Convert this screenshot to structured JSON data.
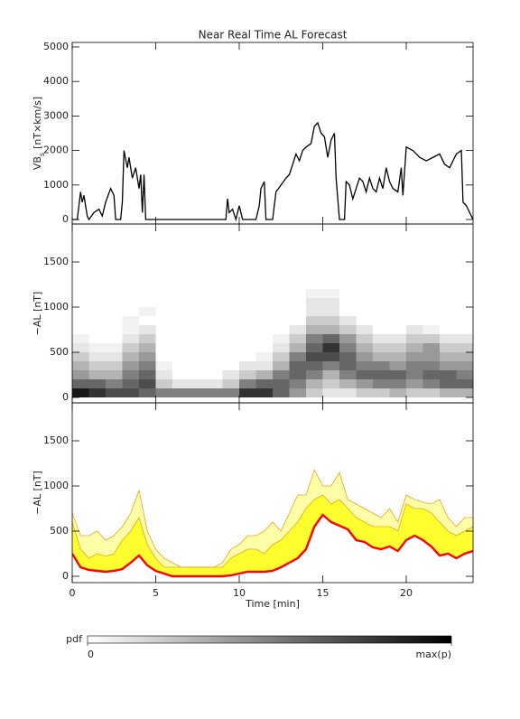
{
  "chart_data": [
    {
      "type": "line",
      "title": "Near Real Time AL Forecast",
      "ylabel": {
        "main": "VB",
        "sub": "s",
        "unit": "[nT×km/s]"
      },
      "color": "#000000",
      "x": [
        0,
        0.3,
        0.5,
        0.6,
        0.7,
        0.9,
        1.0,
        1.3,
        1.6,
        1.8,
        2.0,
        2.3,
        2.5,
        2.6,
        2.9,
        3.0,
        3.1,
        3.3,
        3.4,
        3.6,
        3.8,
        4.0,
        4.1,
        4.2,
        4.3,
        4.4,
        9.2,
        9.3,
        9.4,
        9.6,
        9.8,
        10.0,
        10.2,
        11.0,
        11.2,
        11.3,
        11.5,
        11.6,
        12.0,
        12.2,
        12.5,
        12.8,
        13.0,
        13.2,
        13.4,
        13.6,
        13.8,
        14.0,
        14.3,
        14.5,
        14.7,
        14.9,
        15.1,
        15.3,
        15.5,
        15.7,
        15.8,
        16.0,
        16.3,
        16.4,
        16.6,
        16.8,
        17.0,
        17.2,
        17.4,
        17.6,
        17.8,
        18.0,
        18.2,
        18.4,
        18.6,
        18.8,
        19.0,
        19.2,
        19.5,
        19.7,
        19.8,
        20.0,
        20.4,
        20.8,
        21.2,
        21.6,
        22.0,
        22.3,
        22.6,
        22.8,
        23.0,
        23.3,
        23.4,
        23.6,
        23.8,
        24.0
      ],
      "values": [
        0,
        0,
        800,
        500,
        700,
        100,
        0,
        200,
        300,
        100,
        500,
        900,
        700,
        0,
        0,
        500,
        2000,
        1500,
        1800,
        1200,
        1500,
        900,
        1300,
        200,
        1300,
        0,
        0,
        600,
        200,
        300,
        0,
        400,
        0,
        0,
        400,
        900,
        1100,
        0,
        0,
        800,
        1000,
        1200,
        1300,
        1600,
        1900,
        1700,
        2000,
        2100,
        2200,
        2700,
        2800,
        2500,
        2400,
        1800,
        2300,
        2500,
        1200,
        0,
        0,
        1100,
        1000,
        600,
        900,
        1200,
        1100,
        800,
        1200,
        900,
        800,
        1200,
        900,
        1500,
        1100,
        900,
        800,
        1500,
        700,
        2100,
        2000,
        1800,
        1700,
        1800,
        1900,
        1600,
        1500,
        1700,
        1900,
        2000,
        500,
        400,
        200,
        0
      ],
      "xlim": [
        0,
        24
      ],
      "xticks": [
        0,
        5,
        10,
        15,
        20
      ],
      "ylim": [
        -130,
        5130
      ],
      "yticks": [
        0,
        1000,
        2000,
        3000,
        4000,
        5000
      ]
    },
    {
      "type": "heatmap",
      "ylabel": "−AL [nT]",
      "xbins": [
        0,
        1,
        2,
        3,
        4,
        5,
        6,
        7,
        8,
        9,
        10,
        11,
        12,
        13,
        14,
        15,
        16,
        17,
        18,
        19,
        20,
        21,
        22,
        23,
        24
      ],
      "ybins": [
        0,
        100,
        200,
        300,
        400,
        500,
        600,
        700,
        800,
        900,
        1000,
        1100,
        1200
      ],
      "z": [
        [
          0.9,
          0.8,
          0.7,
          0.7,
          0.6,
          0.5,
          0.5,
          0.5,
          0.5,
          0.5,
          0.8,
          0.8,
          0.6,
          0.4,
          0.2,
          0.1,
          0.1,
          0.2,
          0.2,
          0.3,
          0.2,
          0.2,
          0.3,
          0.3
        ],
        [
          0.6,
          0.6,
          0.5,
          0.6,
          0.7,
          0.2,
          0.1,
          0.1,
          0.1,
          0.2,
          0.5,
          0.6,
          0.6,
          0.5,
          0.3,
          0.2,
          0.3,
          0.4,
          0.5,
          0.5,
          0.4,
          0.5,
          0.6,
          0.6
        ],
        [
          0.4,
          0.3,
          0.3,
          0.5,
          0.6,
          0.1,
          0,
          0,
          0,
          0.1,
          0.2,
          0.3,
          0.5,
          0.6,
          0.5,
          0.3,
          0.5,
          0.6,
          0.6,
          0.6,
          0.5,
          0.6,
          0.6,
          0.5
        ],
        [
          0.3,
          0.2,
          0.2,
          0.4,
          0.5,
          0.05,
          0,
          0,
          0,
          0,
          0.1,
          0.1,
          0.3,
          0.6,
          0.6,
          0.5,
          0.6,
          0.5,
          0.5,
          0.4,
          0.5,
          0.5,
          0.4,
          0.4
        ],
        [
          0.2,
          0.1,
          0.1,
          0.3,
          0.4,
          0,
          0,
          0,
          0,
          0,
          0,
          0.05,
          0.2,
          0.5,
          0.7,
          0.7,
          0.6,
          0.4,
          0.3,
          0.3,
          0.4,
          0.4,
          0.3,
          0.3
        ],
        [
          0.1,
          0.05,
          0.05,
          0.2,
          0.3,
          0,
          0,
          0,
          0,
          0,
          0,
          0,
          0.1,
          0.3,
          0.6,
          0.8,
          0.5,
          0.3,
          0.2,
          0.2,
          0.3,
          0.4,
          0.2,
          0.2
        ],
        [
          0.05,
          0,
          0,
          0.1,
          0.2,
          0,
          0,
          0,
          0,
          0,
          0,
          0,
          0.05,
          0.2,
          0.5,
          0.6,
          0.4,
          0.2,
          0.1,
          0.1,
          0.2,
          0.2,
          0.1,
          0.1
        ],
        [
          0,
          0,
          0,
          0.05,
          0.1,
          0,
          0,
          0,
          0,
          0,
          0,
          0,
          0,
          0.1,
          0.3,
          0.3,
          0.2,
          0.1,
          0,
          0,
          0.1,
          0.05,
          0,
          0
        ],
        [
          0,
          0,
          0,
          0.05,
          0,
          0,
          0,
          0,
          0,
          0,
          0,
          0,
          0,
          0,
          0.2,
          0.2,
          0.1,
          0,
          0,
          0,
          0,
          0,
          0,
          0
        ],
        [
          0,
          0,
          0,
          0,
          0.05,
          0,
          0,
          0,
          0,
          0,
          0,
          0,
          0,
          0,
          0.1,
          0.1,
          0,
          0,
          0,
          0,
          0,
          0,
          0,
          0
        ],
        [
          0,
          0,
          0,
          0,
          0,
          0,
          0,
          0,
          0,
          0,
          0,
          0,
          0,
          0,
          0.1,
          0.1,
          0,
          0,
          0,
          0,
          0,
          0,
          0,
          0
        ],
        [
          0,
          0,
          0,
          0,
          0,
          0,
          0,
          0,
          0,
          0,
          0,
          0,
          0,
          0,
          0.05,
          0.05,
          0,
          0,
          0,
          0,
          0,
          0,
          0,
          0
        ]
      ],
      "xlim": [
        0,
        24
      ],
      "xticks": [
        0,
        5,
        10,
        15,
        20
      ],
      "ylim": [
        -60,
        1920
      ],
      "yticks": [
        0,
        500,
        1000,
        1500
      ],
      "colorbar": {
        "label": "pdf",
        "range": [
          0,
          1
        ],
        "ticks": [
          0,
          {
            "value": 1,
            "label": "max(p)"
          }
        ]
      }
    },
    {
      "type": "band",
      "ylabel": "−AL [nT]",
      "xlabel": "Time [min]",
      "x": [
        0,
        0.5,
        1,
        1.5,
        2,
        2.5,
        3,
        3.5,
        4,
        4.5,
        5,
        5.5,
        6,
        6.5,
        7,
        7.5,
        8,
        8.5,
        9,
        9.5,
        10,
        10.5,
        11,
        11.5,
        12,
        12.5,
        13,
        13.5,
        14,
        14.5,
        15,
        15.5,
        16,
        16.5,
        17,
        17.5,
        18,
        18.5,
        19,
        19.5,
        20,
        20.5,
        21,
        21.5,
        22,
        22.5,
        23,
        23.5,
        24
      ],
      "series": [
        {
          "color": "#f0a020",
          "fill": "#ffffa8",
          "values": [
            700,
            450,
            450,
            500,
            400,
            450,
            550,
            700,
            950,
            500,
            300,
            200,
            150,
            100,
            100,
            100,
            100,
            100,
            150,
            300,
            350,
            450,
            450,
            500,
            600,
            500,
            700,
            900,
            900,
            1180,
            1000,
            1000,
            1150,
            850,
            800,
            750,
            700,
            650,
            750,
            600,
            900,
            850,
            820,
            800,
            850,
            650,
            550,
            650,
            650
          ]
        },
        {
          "color": "#f0a020",
          "fill": "#ffff30",
          "values": [
            600,
            300,
            200,
            250,
            220,
            250,
            400,
            500,
            650,
            350,
            200,
            100,
            100,
            100,
            100,
            100,
            100,
            100,
            100,
            200,
            250,
            300,
            300,
            250,
            350,
            400,
            500,
            600,
            750,
            850,
            900,
            800,
            850,
            750,
            650,
            600,
            550,
            550,
            550,
            500,
            800,
            750,
            750,
            700,
            600,
            500,
            450,
            500,
            550
          ]
        },
        {
          "color": "#ff0000",
          "values": [
            250,
            100,
            70,
            60,
            50,
            60,
            80,
            150,
            230,
            120,
            60,
            30,
            0,
            0,
            0,
            0,
            0,
            0,
            0,
            10,
            30,
            50,
            50,
            50,
            60,
            100,
            150,
            200,
            300,
            550,
            680,
            600,
            560,
            520,
            400,
            380,
            320,
            300,
            330,
            280,
            400,
            450,
            400,
            330,
            230,
            250,
            200,
            250,
            280
          ]
        }
      ],
      "xlim": [
        0,
        24
      ],
      "xticks": [
        0,
        5,
        10,
        15,
        20
      ],
      "ylim": [
        -70,
        1920
      ],
      "yticks": [
        0,
        500,
        1000,
        1500
      ]
    }
  ]
}
